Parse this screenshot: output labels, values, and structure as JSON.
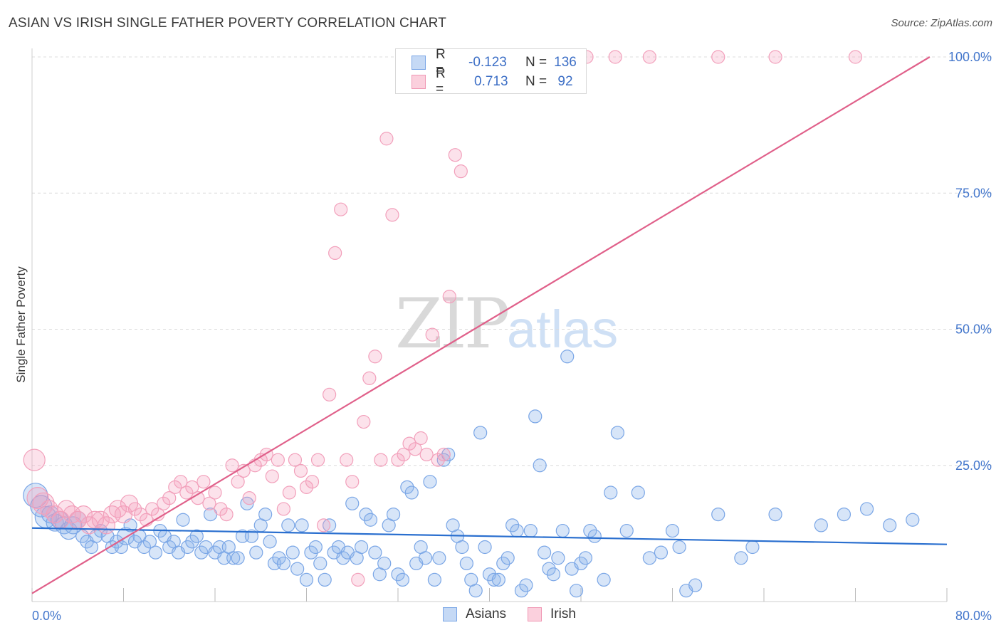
{
  "title": "ASIAN VS IRISH SINGLE FATHER POVERTY CORRELATION CHART",
  "source": "Source: ZipAtlas.com",
  "watermark": {
    "zip": "ZIP",
    "atlas": "atlas"
  },
  "legend": {
    "asians": {
      "r_label": "R =",
      "r_value": "-0.123",
      "n_label": "N =",
      "n_value": "136"
    },
    "irish": {
      "r_label": "R =",
      "r_value": "0.713",
      "n_label": "N =",
      "n_value": "92"
    }
  },
  "chart_data": {
    "type": "scatter",
    "title": "ASIAN VS IRISH SINGLE FATHER POVERTY CORRELATION CHART",
    "ylabel": "Single Father Poverty",
    "xlabel": "",
    "xlim": [
      0,
      80
    ],
    "ylim": [
      0,
      100
    ],
    "x_tick_labels": [
      {
        "value": 0,
        "label": "0.0%"
      },
      {
        "value": 80,
        "label": "80.0%"
      }
    ],
    "y_tick_labels": [
      {
        "value": 25,
        "label": "25.0%"
      },
      {
        "value": 50,
        "label": "50.0%"
      },
      {
        "value": 75,
        "label": "75.0%"
      },
      {
        "value": 100,
        "label": "100.0%"
      }
    ],
    "grid": true,
    "legend_position": "top-center",
    "series": [
      {
        "name": "Asians",
        "color": "#7aa6e6",
        "trend": {
          "x": [
            0,
            80
          ],
          "y": [
            13.5,
            10.5
          ]
        },
        "points": [
          [
            0.3,
            19.5,
            3
          ],
          [
            0.8,
            17.5,
            2
          ],
          [
            1.2,
            15.5,
            2
          ],
          [
            1.6,
            16,
            1
          ],
          [
            2.0,
            14.5,
            1
          ],
          [
            2.4,
            15,
            1
          ],
          [
            2.8,
            14,
            1
          ],
          [
            3.2,
            13,
            1
          ],
          [
            3.6,
            14,
            1
          ],
          [
            4.0,
            15,
            1
          ],
          [
            4.4,
            12,
            0
          ],
          [
            4.8,
            11,
            0
          ],
          [
            5.2,
            10,
            0
          ],
          [
            5.6,
            12,
            0
          ],
          [
            6.0,
            13,
            0
          ],
          [
            6.6,
            12,
            0
          ],
          [
            7.0,
            10,
            0
          ],
          [
            7.4,
            11,
            0
          ],
          [
            7.8,
            10,
            0
          ],
          [
            8.2,
            12,
            1
          ],
          [
            8.6,
            14,
            0
          ],
          [
            9.0,
            11,
            0
          ],
          [
            9.4,
            12,
            0
          ],
          [
            9.8,
            10,
            0
          ],
          [
            10.3,
            11,
            0
          ],
          [
            10.8,
            9,
            0
          ],
          [
            11.2,
            13,
            0
          ],
          [
            11.6,
            12,
            0
          ],
          [
            12.0,
            10,
            0
          ],
          [
            12.4,
            11,
            0
          ],
          [
            12.8,
            9,
            0
          ],
          [
            13.2,
            15,
            0
          ],
          [
            13.6,
            10,
            0
          ],
          [
            14.0,
            11,
            0
          ],
          [
            14.4,
            12,
            0
          ],
          [
            14.8,
            9,
            0
          ],
          [
            15.2,
            10,
            0
          ],
          [
            15.6,
            16,
            0
          ],
          [
            16.0,
            9,
            0
          ],
          [
            16.4,
            10,
            0
          ],
          [
            16.8,
            8,
            0
          ],
          [
            17.2,
            10,
            0
          ],
          [
            17.6,
            8,
            0
          ],
          [
            18.0,
            8,
            0
          ],
          [
            18.4,
            12,
            0
          ],
          [
            18.8,
            18,
            0
          ],
          [
            19.2,
            12,
            0
          ],
          [
            19.6,
            9,
            0
          ],
          [
            20.0,
            14,
            0
          ],
          [
            20.4,
            16,
            0
          ],
          [
            20.8,
            11,
            0
          ],
          [
            21.2,
            7,
            0
          ],
          [
            21.6,
            8,
            0
          ],
          [
            22.0,
            7,
            0
          ],
          [
            22.4,
            14,
            0
          ],
          [
            22.8,
            9,
            0
          ],
          [
            23.2,
            6,
            0
          ],
          [
            23.6,
            14,
            0
          ],
          [
            24.0,
            4,
            0
          ],
          [
            24.4,
            9,
            0
          ],
          [
            24.8,
            10,
            0
          ],
          [
            25.2,
            7,
            0
          ],
          [
            25.6,
            4,
            0
          ],
          [
            26.0,
            14,
            0
          ],
          [
            26.4,
            9,
            0
          ],
          [
            26.8,
            10,
            0
          ],
          [
            27.2,
            8,
            0
          ],
          [
            27.6,
            9,
            0
          ],
          [
            28.0,
            18,
            0
          ],
          [
            28.4,
            8,
            0
          ],
          [
            28.8,
            10,
            0
          ],
          [
            29.2,
            16,
            0
          ],
          [
            29.6,
            15,
            0
          ],
          [
            30.0,
            9,
            0
          ],
          [
            30.4,
            5,
            0
          ],
          [
            30.8,
            7,
            0
          ],
          [
            31.2,
            14,
            0
          ],
          [
            31.6,
            16,
            0
          ],
          [
            32.0,
            5,
            0
          ],
          [
            32.4,
            4,
            0
          ],
          [
            32.8,
            21,
            0
          ],
          [
            33.2,
            20,
            0
          ],
          [
            33.6,
            7,
            0
          ],
          [
            34.0,
            10,
            0
          ],
          [
            34.4,
            8,
            0
          ],
          [
            34.8,
            22,
            0
          ],
          [
            35.2,
            4,
            0
          ],
          [
            35.6,
            8,
            0
          ],
          [
            36.0,
            26,
            0
          ],
          [
            36.4,
            27,
            0
          ],
          [
            36.8,
            14,
            0
          ],
          [
            37.2,
            12,
            0
          ],
          [
            37.6,
            10,
            0
          ],
          [
            38.0,
            7,
            0
          ],
          [
            38.4,
            4,
            0
          ],
          [
            38.8,
            2,
            0
          ],
          [
            39.2,
            31,
            0
          ],
          [
            39.6,
            10,
            0
          ],
          [
            40.0,
            5,
            0
          ],
          [
            40.4,
            4,
            0
          ],
          [
            40.8,
            4,
            0
          ],
          [
            41.2,
            7,
            0
          ],
          [
            41.6,
            8,
            0
          ],
          [
            42.0,
            14,
            0
          ],
          [
            42.4,
            13,
            0
          ],
          [
            42.8,
            2,
            0
          ],
          [
            43.2,
            3,
            0
          ],
          [
            43.6,
            13,
            0
          ],
          [
            44.0,
            34,
            0
          ],
          [
            44.4,
            25,
            0
          ],
          [
            44.8,
            9,
            0
          ],
          [
            45.2,
            6,
            0
          ],
          [
            45.6,
            5,
            0
          ],
          [
            46.0,
            8,
            0
          ],
          [
            46.4,
            13,
            0
          ],
          [
            46.8,
            45,
            0
          ],
          [
            47.2,
            6,
            0
          ],
          [
            47.6,
            2,
            0
          ],
          [
            48.0,
            7,
            0
          ],
          [
            48.4,
            8,
            0
          ],
          [
            48.8,
            13,
            0
          ],
          [
            49.2,
            12,
            0
          ],
          [
            50.0,
            4,
            0
          ],
          [
            50.6,
            20,
            0
          ],
          [
            51.2,
            31,
            0
          ],
          [
            52.0,
            13,
            0
          ],
          [
            53.0,
            20,
            0
          ],
          [
            54.0,
            8,
            0
          ],
          [
            55.0,
            9,
            0
          ],
          [
            56.0,
            13,
            0
          ],
          [
            56.6,
            10,
            0
          ],
          [
            57.2,
            2,
            0
          ],
          [
            58.0,
            3,
            0
          ],
          [
            60.0,
            16,
            0
          ],
          [
            62.0,
            8,
            0
          ],
          [
            63.0,
            10,
            0
          ],
          [
            65.0,
            16,
            0
          ],
          [
            69.0,
            14,
            0
          ],
          [
            71.0,
            16,
            0
          ],
          [
            73.0,
            17,
            0
          ],
          [
            75.0,
            14,
            0
          ],
          [
            77.0,
            15,
            0
          ]
        ]
      },
      {
        "name": "Irish",
        "color": "#f098b4",
        "trend": {
          "x": [
            0,
            78.5
          ],
          "y": [
            1.5,
            100
          ]
        },
        "points": [
          [
            0.2,
            26,
            2
          ],
          [
            0.5,
            19,
            2
          ],
          [
            1.0,
            18,
            2
          ],
          [
            1.5,
            17,
            1
          ],
          [
            2.0,
            16,
            1
          ],
          [
            2.5,
            15,
            1
          ],
          [
            3.0,
            17,
            1
          ],
          [
            3.5,
            16,
            1
          ],
          [
            4.0,
            15,
            1
          ],
          [
            4.5,
            16,
            1
          ],
          [
            5.0,
            14,
            1
          ],
          [
            5.5,
            15,
            1
          ],
          [
            6.0,
            15,
            1
          ],
          [
            6.5,
            14,
            1
          ],
          [
            7.0,
            16,
            1
          ],
          [
            7.5,
            17,
            1
          ],
          [
            8.0,
            16,
            1
          ],
          [
            8.5,
            18,
            1
          ],
          [
            9.0,
            17,
            0
          ],
          [
            9.5,
            16,
            0
          ],
          [
            10.0,
            15,
            0
          ],
          [
            10.5,
            17,
            0
          ],
          [
            11.0,
            16,
            0
          ],
          [
            11.5,
            18,
            0
          ],
          [
            12.0,
            19,
            0
          ],
          [
            12.5,
            21,
            0
          ],
          [
            13.0,
            22,
            0
          ],
          [
            13.5,
            20,
            0
          ],
          [
            14.0,
            21,
            0
          ],
          [
            14.5,
            19,
            0
          ],
          [
            15.0,
            22,
            0
          ],
          [
            15.5,
            18,
            0
          ],
          [
            16.0,
            20,
            0
          ],
          [
            16.5,
            17,
            0
          ],
          [
            17.0,
            16,
            0
          ],
          [
            17.5,
            25,
            0
          ],
          [
            18.0,
            22,
            0
          ],
          [
            18.5,
            24,
            0
          ],
          [
            19.0,
            19,
            0
          ],
          [
            19.5,
            25,
            0
          ],
          [
            20.0,
            26,
            0
          ],
          [
            20.5,
            27,
            0
          ],
          [
            21.0,
            23,
            0
          ],
          [
            21.5,
            26,
            0
          ],
          [
            22.0,
            17,
            0
          ],
          [
            22.5,
            20,
            0
          ],
          [
            23.0,
            26,
            0
          ],
          [
            23.5,
            24,
            0
          ],
          [
            24.0,
            21,
            0
          ],
          [
            24.5,
            22,
            0
          ],
          [
            25.0,
            26,
            0
          ],
          [
            25.5,
            14,
            0
          ],
          [
            26.0,
            38,
            0
          ],
          [
            26.5,
            64,
            0
          ],
          [
            27.0,
            72,
            0
          ],
          [
            27.5,
            26,
            0
          ],
          [
            28.0,
            22,
            0
          ],
          [
            28.5,
            4,
            0
          ],
          [
            29.0,
            33,
            0
          ],
          [
            29.5,
            41,
            0
          ],
          [
            30.0,
            45,
            0
          ],
          [
            30.5,
            26,
            0
          ],
          [
            31.0,
            85,
            0
          ],
          [
            31.5,
            71,
            0
          ],
          [
            32.0,
            26,
            0
          ],
          [
            32.5,
            27,
            0
          ],
          [
            33.0,
            29,
            0
          ],
          [
            33.5,
            28,
            0
          ],
          [
            34.0,
            30,
            0
          ],
          [
            34.5,
            27,
            0
          ],
          [
            35.0,
            49,
            0
          ],
          [
            35.5,
            26,
            0
          ],
          [
            36.0,
            27,
            0
          ],
          [
            36.5,
            56,
            0
          ],
          [
            37.0,
            82,
            0
          ],
          [
            37.5,
            79,
            0
          ],
          [
            38.0,
            100,
            0
          ],
          [
            38.5,
            100,
            0
          ],
          [
            39.0,
            100,
            0
          ],
          [
            39.5,
            100,
            0
          ],
          [
            40.0,
            100,
            0
          ],
          [
            40.5,
            100,
            0
          ],
          [
            41.0,
            100,
            0
          ],
          [
            48.5,
            100,
            0
          ],
          [
            51.0,
            100,
            0
          ],
          [
            54.0,
            100,
            0
          ],
          [
            60.0,
            100,
            0
          ],
          [
            65.0,
            100,
            0
          ],
          [
            72.0,
            100,
            0
          ],
          [
            37.2,
            100,
            0
          ],
          [
            38.7,
            100,
            0
          ],
          [
            34.2,
            100,
            0
          ]
        ]
      }
    ]
  },
  "bottom_legend": [
    {
      "name": "Asians",
      "color": "#7aa6e6"
    },
    {
      "name": "Irish",
      "color": "#f098b4"
    }
  ]
}
